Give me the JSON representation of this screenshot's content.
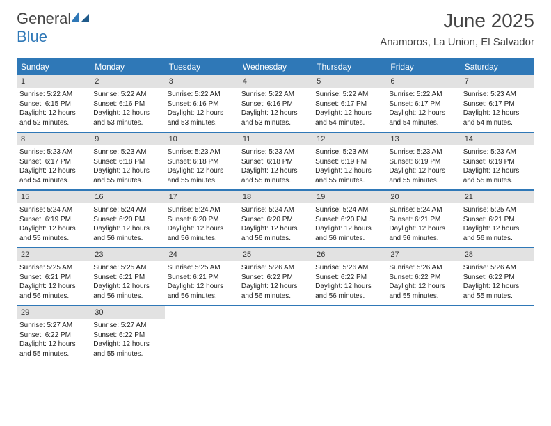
{
  "logo": {
    "text1": "General",
    "text2": "Blue"
  },
  "header": {
    "month_title": "June 2025",
    "location": "Anamoros, La Union, El Salvador"
  },
  "colors": {
    "brand_blue": "#2f78b7",
    "band_gray": "#e2e2e2",
    "text": "#333333",
    "bg": "#ffffff"
  },
  "calendar": {
    "weekdays": [
      "Sunday",
      "Monday",
      "Tuesday",
      "Wednesday",
      "Thursday",
      "Friday",
      "Saturday"
    ],
    "weeks": [
      [
        {
          "day": "1",
          "sunrise": "Sunrise: 5:22 AM",
          "sunset": "Sunset: 6:15 PM",
          "daylight": "Daylight: 12 hours and 52 minutes."
        },
        {
          "day": "2",
          "sunrise": "Sunrise: 5:22 AM",
          "sunset": "Sunset: 6:16 PM",
          "daylight": "Daylight: 12 hours and 53 minutes."
        },
        {
          "day": "3",
          "sunrise": "Sunrise: 5:22 AM",
          "sunset": "Sunset: 6:16 PM",
          "daylight": "Daylight: 12 hours and 53 minutes."
        },
        {
          "day": "4",
          "sunrise": "Sunrise: 5:22 AM",
          "sunset": "Sunset: 6:16 PM",
          "daylight": "Daylight: 12 hours and 53 minutes."
        },
        {
          "day": "5",
          "sunrise": "Sunrise: 5:22 AM",
          "sunset": "Sunset: 6:17 PM",
          "daylight": "Daylight: 12 hours and 54 minutes."
        },
        {
          "day": "6",
          "sunrise": "Sunrise: 5:22 AM",
          "sunset": "Sunset: 6:17 PM",
          "daylight": "Daylight: 12 hours and 54 minutes."
        },
        {
          "day": "7",
          "sunrise": "Sunrise: 5:23 AM",
          "sunset": "Sunset: 6:17 PM",
          "daylight": "Daylight: 12 hours and 54 minutes."
        }
      ],
      [
        {
          "day": "8",
          "sunrise": "Sunrise: 5:23 AM",
          "sunset": "Sunset: 6:17 PM",
          "daylight": "Daylight: 12 hours and 54 minutes."
        },
        {
          "day": "9",
          "sunrise": "Sunrise: 5:23 AM",
          "sunset": "Sunset: 6:18 PM",
          "daylight": "Daylight: 12 hours and 55 minutes."
        },
        {
          "day": "10",
          "sunrise": "Sunrise: 5:23 AM",
          "sunset": "Sunset: 6:18 PM",
          "daylight": "Daylight: 12 hours and 55 minutes."
        },
        {
          "day": "11",
          "sunrise": "Sunrise: 5:23 AM",
          "sunset": "Sunset: 6:18 PM",
          "daylight": "Daylight: 12 hours and 55 minutes."
        },
        {
          "day": "12",
          "sunrise": "Sunrise: 5:23 AM",
          "sunset": "Sunset: 6:19 PM",
          "daylight": "Daylight: 12 hours and 55 minutes."
        },
        {
          "day": "13",
          "sunrise": "Sunrise: 5:23 AM",
          "sunset": "Sunset: 6:19 PM",
          "daylight": "Daylight: 12 hours and 55 minutes."
        },
        {
          "day": "14",
          "sunrise": "Sunrise: 5:23 AM",
          "sunset": "Sunset: 6:19 PM",
          "daylight": "Daylight: 12 hours and 55 minutes."
        }
      ],
      [
        {
          "day": "15",
          "sunrise": "Sunrise: 5:24 AM",
          "sunset": "Sunset: 6:19 PM",
          "daylight": "Daylight: 12 hours and 55 minutes."
        },
        {
          "day": "16",
          "sunrise": "Sunrise: 5:24 AM",
          "sunset": "Sunset: 6:20 PM",
          "daylight": "Daylight: 12 hours and 56 minutes."
        },
        {
          "day": "17",
          "sunrise": "Sunrise: 5:24 AM",
          "sunset": "Sunset: 6:20 PM",
          "daylight": "Daylight: 12 hours and 56 minutes."
        },
        {
          "day": "18",
          "sunrise": "Sunrise: 5:24 AM",
          "sunset": "Sunset: 6:20 PM",
          "daylight": "Daylight: 12 hours and 56 minutes."
        },
        {
          "day": "19",
          "sunrise": "Sunrise: 5:24 AM",
          "sunset": "Sunset: 6:20 PM",
          "daylight": "Daylight: 12 hours and 56 minutes."
        },
        {
          "day": "20",
          "sunrise": "Sunrise: 5:24 AM",
          "sunset": "Sunset: 6:21 PM",
          "daylight": "Daylight: 12 hours and 56 minutes."
        },
        {
          "day": "21",
          "sunrise": "Sunrise: 5:25 AM",
          "sunset": "Sunset: 6:21 PM",
          "daylight": "Daylight: 12 hours and 56 minutes."
        }
      ],
      [
        {
          "day": "22",
          "sunrise": "Sunrise: 5:25 AM",
          "sunset": "Sunset: 6:21 PM",
          "daylight": "Daylight: 12 hours and 56 minutes."
        },
        {
          "day": "23",
          "sunrise": "Sunrise: 5:25 AM",
          "sunset": "Sunset: 6:21 PM",
          "daylight": "Daylight: 12 hours and 56 minutes."
        },
        {
          "day": "24",
          "sunrise": "Sunrise: 5:25 AM",
          "sunset": "Sunset: 6:21 PM",
          "daylight": "Daylight: 12 hours and 56 minutes."
        },
        {
          "day": "25",
          "sunrise": "Sunrise: 5:26 AM",
          "sunset": "Sunset: 6:22 PM",
          "daylight": "Daylight: 12 hours and 56 minutes."
        },
        {
          "day": "26",
          "sunrise": "Sunrise: 5:26 AM",
          "sunset": "Sunset: 6:22 PM",
          "daylight": "Daylight: 12 hours and 56 minutes."
        },
        {
          "day": "27",
          "sunrise": "Sunrise: 5:26 AM",
          "sunset": "Sunset: 6:22 PM",
          "daylight": "Daylight: 12 hours and 55 minutes."
        },
        {
          "day": "28",
          "sunrise": "Sunrise: 5:26 AM",
          "sunset": "Sunset: 6:22 PM",
          "daylight": "Daylight: 12 hours and 55 minutes."
        }
      ],
      [
        {
          "day": "29",
          "sunrise": "Sunrise: 5:27 AM",
          "sunset": "Sunset: 6:22 PM",
          "daylight": "Daylight: 12 hours and 55 minutes."
        },
        {
          "day": "30",
          "sunrise": "Sunrise: 5:27 AM",
          "sunset": "Sunset: 6:22 PM",
          "daylight": "Daylight: 12 hours and 55 minutes."
        },
        null,
        null,
        null,
        null,
        null
      ]
    ]
  }
}
